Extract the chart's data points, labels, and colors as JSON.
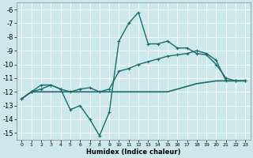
{
  "xlabel": "Humidex (Indice chaleur)",
  "background_color": "#cce8eb",
  "grid_color": "#ffffff",
  "line_color": "#1a6b6b",
  "xlim": [
    -0.5,
    23.5
  ],
  "ylim": [
    -15.5,
    -5.5
  ],
  "yticks": [
    -6,
    -7,
    -8,
    -9,
    -10,
    -11,
    -12,
    -13,
    -14,
    -15
  ],
  "xticks": [
    0,
    1,
    2,
    3,
    4,
    5,
    6,
    7,
    8,
    9,
    10,
    11,
    12,
    13,
    14,
    15,
    16,
    17,
    18,
    19,
    20,
    21,
    22,
    23
  ],
  "line1_x": [
    0,
    1,
    2,
    3,
    4,
    5,
    6,
    7,
    8,
    9,
    10,
    11,
    12,
    13,
    14,
    15,
    16,
    17,
    18,
    19,
    20,
    21,
    22,
    23
  ],
  "line1_y": [
    -12.5,
    -12.0,
    -11.5,
    -11.5,
    -11.8,
    -13.3,
    -13.0,
    -14.0,
    -15.2,
    -13.5,
    -8.3,
    -7.0,
    -6.2,
    -8.5,
    -8.5,
    -8.3,
    -8.8,
    -8.8,
    -9.2,
    -9.3,
    -10.0,
    -11.0,
    -11.2,
    -11.2
  ],
  "line2_x": [
    0,
    1,
    2,
    3,
    4,
    5,
    6,
    7,
    8,
    9,
    10,
    11,
    12,
    13,
    14,
    15,
    16,
    17,
    18,
    19,
    20,
    21,
    22,
    23
  ],
  "line2_y": [
    -12.5,
    -12.0,
    -11.8,
    -11.5,
    -11.8,
    -12.0,
    -11.8,
    -11.7,
    -12.0,
    -11.8,
    -10.5,
    -10.3,
    -10.0,
    -9.8,
    -9.6,
    -9.4,
    -9.3,
    -9.2,
    -9.0,
    -9.2,
    -9.7,
    -11.2,
    -11.2,
    -11.2
  ],
  "line3_x": [
    0,
    1,
    2,
    3,
    4,
    5,
    6,
    7,
    8,
    9,
    10,
    11,
    12,
    13,
    14,
    15,
    16,
    17,
    18,
    19,
    20,
    21,
    22,
    23
  ],
  "line3_y": [
    -12.5,
    -12.0,
    -12.0,
    -12.0,
    -12.0,
    -12.0,
    -12.0,
    -12.0,
    -12.0,
    -12.0,
    -12.0,
    -12.0,
    -12.0,
    -12.0,
    -12.0,
    -12.0,
    -11.8,
    -11.6,
    -11.4,
    -11.3,
    -11.2,
    -11.2,
    -11.2,
    -11.2
  ],
  "xlabel_fontsize": 6,
  "xlabel_fontweight": "bold",
  "ytick_fontsize": 6,
  "xtick_fontsize": 4.5,
  "linewidth1": 1.0,
  "linewidth2": 1.0,
  "linewidth3": 1.2,
  "markersize": 3,
  "markeredgewidth": 0.8
}
